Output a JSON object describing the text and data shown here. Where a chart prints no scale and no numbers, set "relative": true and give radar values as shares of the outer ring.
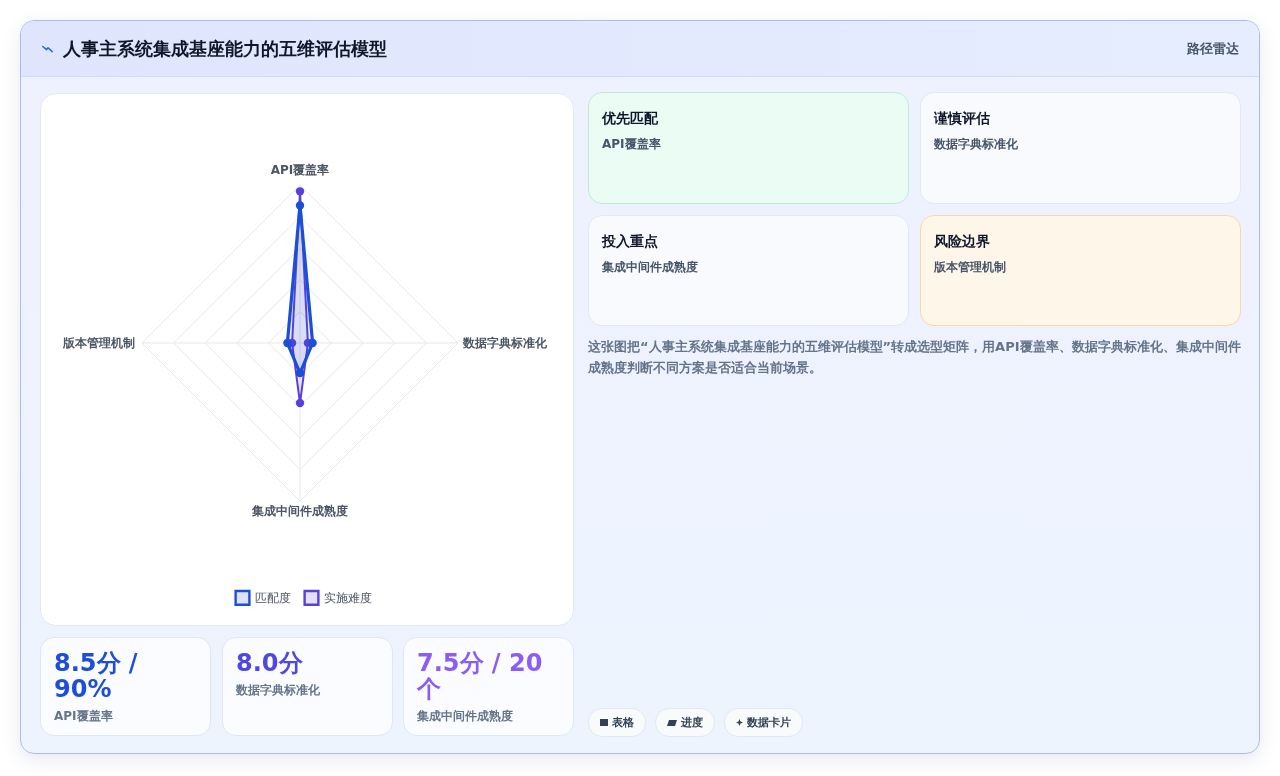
{
  "chart_data": [
    {
      "type": "other",
      "title": "人事主系统集成基座能力的五维评估模型",
      "subtitle": "路径雷达"
    },
    {
      "type": "radar",
      "categories": [
        "API覆盖率",
        "数据字典标准化",
        "集成中间件成熟度",
        "版本管理机制"
      ],
      "series": [
        {
          "name": "匹配度",
          "color": "#1d4ed8",
          "values": [
            0.87,
            0.08,
            0.19,
            0.08
          ]
        },
        {
          "name": "实施难度",
          "color": "#5840dc",
          "values": [
            0.96,
            0.05,
            0.38,
            0.05
          ]
        }
      ],
      "relative": true,
      "grid": true,
      "legend": "bottom",
      "marker": "circle"
    },
    {
      "type": "other",
      "title": "优先匹配",
      "annotations": [
        "API覆盖率"
      ]
    },
    {
      "type": "other",
      "title": "谨慎评估",
      "annotations": [
        "数据字典标准化"
      ]
    },
    {
      "type": "other",
      "title": "投入重点",
      "annotations": [
        "集成中间件成熟度"
      ]
    },
    {
      "type": "other",
      "title": "风险边界",
      "annotations": [
        "版本管理机制"
      ]
    },
    {
      "type": "other",
      "annotations": [
        "这张图把“人事主系统集成基座能力的五维评估模型”转成选型矩阵，用API覆盖率、数据字典标准化、集成中间件成熟度判断不同方案是否适合当前场景。"
      ]
    },
    {
      "type": "other",
      "title": "8.5分 / 90%",
      "annotations": [
        "API覆盖率"
      ]
    },
    {
      "type": "other",
      "title": "8.0分",
      "annotations": [
        "数据字典标准化"
      ]
    },
    {
      "type": "other",
      "title": "7.5分 / 20个",
      "annotations": [
        "集成中间件成熟度"
      ]
    },
    {
      "type": "other",
      "annotations": [
        "表格",
        "进度",
        "数据卡片"
      ]
    }
  ]
}
